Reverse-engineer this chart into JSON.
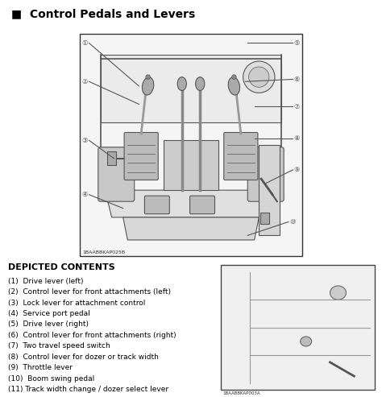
{
  "title": "Control Pedals and Levers",
  "title_marker": "■",
  "background_color": "#ffffff",
  "border_color": "#000000",
  "text_color": "#000000",
  "depicted_contents_title": "DEPICTED CONTENTS",
  "depicted_contents": [
    "(1)  Drive lever (left)",
    "(2)  Control lever for front attachments (left)",
    "(3)  Lock lever for attachment control",
    "(4)  Service port pedal",
    "(5)  Drive lever (right)",
    "(6)  Control lever for front attachments (right)",
    "(7)  Two travel speed switch",
    "(8)  Control lever for dozer or track width",
    "(9)  Throttle lever",
    "(10)  Boom swing pedal",
    "(11) Track width change / dozer select lever"
  ],
  "image_code_main": "1BAABBKAP025B",
  "image_code_sub": "1BAABBKAP003A",
  "fig_width": 4.74,
  "fig_height": 4.93,
  "dpi": 100
}
